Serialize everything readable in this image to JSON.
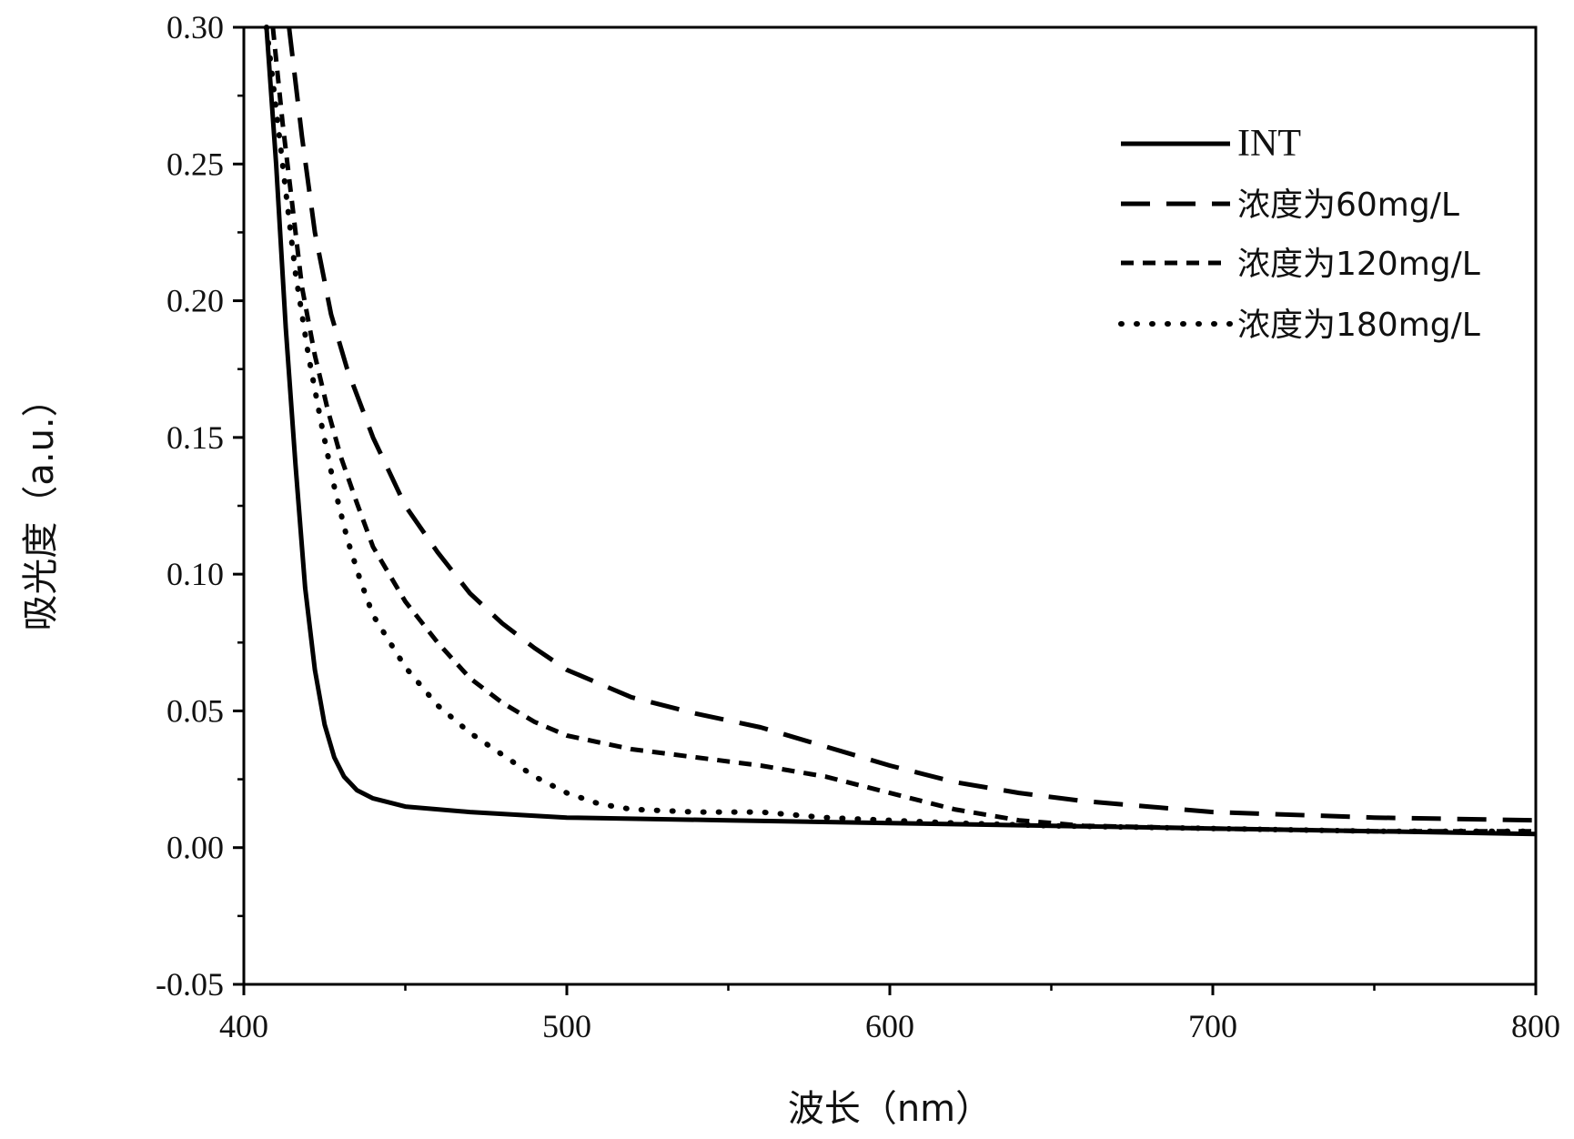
{
  "chart_data": {
    "type": "line",
    "xlabel": "波长（nm）",
    "ylabel": "吸光度（a.u.）",
    "xlim": [
      400,
      800
    ],
    "ylim": [
      -0.05,
      0.3
    ],
    "xticks": [
      400,
      500,
      600,
      700,
      800
    ],
    "xtick_labels": [
      "400",
      "500",
      "600",
      "700",
      "800"
    ],
    "yticks": [
      -0.05,
      0.0,
      0.05,
      0.1,
      0.15,
      0.2,
      0.25,
      0.3
    ],
    "ytick_labels": [
      "-0.05",
      "0.00",
      "0.05",
      "0.10",
      "0.15",
      "0.20",
      "0.25",
      "0.30"
    ],
    "grid": false,
    "legend_position": "top-right",
    "series": [
      {
        "name": "INT",
        "style": "solid",
        "color": "#000000",
        "x": [
          407,
          410,
          413,
          416,
          419,
          422,
          425,
          428,
          431,
          435,
          440,
          450,
          470,
          500,
          550,
          600,
          650,
          700,
          750,
          800
        ],
        "y": [
          0.3,
          0.25,
          0.19,
          0.14,
          0.095,
          0.065,
          0.045,
          0.033,
          0.026,
          0.021,
          0.018,
          0.015,
          0.013,
          0.011,
          0.01,
          0.009,
          0.008,
          0.007,
          0.006,
          0.005
        ]
      },
      {
        "name": "浓度为60mg/L",
        "style": "long-dash",
        "color": "#000000",
        "x": [
          414,
          418,
          422,
          427,
          432,
          440,
          450,
          460,
          470,
          480,
          490,
          500,
          520,
          540,
          560,
          580,
          600,
          620,
          640,
          660,
          680,
          700,
          750,
          800
        ],
        "y": [
          0.3,
          0.26,
          0.225,
          0.195,
          0.175,
          0.15,
          0.125,
          0.108,
          0.093,
          0.082,
          0.073,
          0.065,
          0.055,
          0.049,
          0.044,
          0.037,
          0.03,
          0.024,
          0.02,
          0.017,
          0.015,
          0.013,
          0.011,
          0.01
        ]
      },
      {
        "name": "浓度为120mg/L",
        "style": "short-dash",
        "color": "#000000",
        "x": [
          409,
          412,
          415,
          418,
          422,
          426,
          430,
          435,
          440,
          450,
          460,
          470,
          480,
          490,
          500,
          520,
          540,
          560,
          580,
          600,
          620,
          640,
          660,
          700,
          750,
          800
        ],
        "y": [
          0.3,
          0.265,
          0.235,
          0.205,
          0.18,
          0.16,
          0.143,
          0.126,
          0.11,
          0.09,
          0.075,
          0.062,
          0.053,
          0.046,
          0.041,
          0.036,
          0.033,
          0.03,
          0.026,
          0.02,
          0.014,
          0.01,
          0.008,
          0.007,
          0.006,
          0.006
        ]
      },
      {
        "name": "浓度为180mg/L",
        "style": "dotted",
        "color": "#000000",
        "x": [
          407,
          410,
          413,
          416,
          420,
          424,
          428,
          432,
          436,
          440,
          450,
          460,
          470,
          480,
          490,
          500,
          510,
          520,
          540,
          560,
          580,
          600,
          620,
          650,
          700,
          750,
          800
        ],
        "y": [
          0.3,
          0.27,
          0.24,
          0.21,
          0.18,
          0.155,
          0.132,
          0.113,
          0.098,
          0.085,
          0.066,
          0.052,
          0.042,
          0.034,
          0.026,
          0.02,
          0.016,
          0.014,
          0.013,
          0.013,
          0.011,
          0.01,
          0.009,
          0.008,
          0.007,
          0.006,
          0.006
        ]
      }
    ]
  }
}
